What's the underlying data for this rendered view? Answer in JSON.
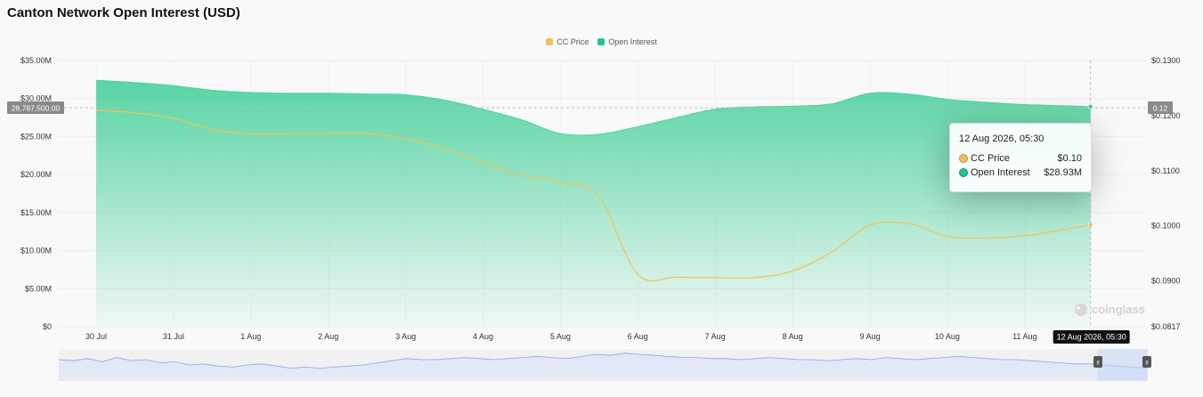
{
  "title": "Canton Network Open Interest (USD)",
  "colors": {
    "price": "#f0c25a",
    "oi": "#22c38e",
    "oi_fill_top": "#4fd39f",
    "navigator_line": "#8fa6e0",
    "navigator_fill": "#dfe6f8"
  },
  "legend": [
    {
      "label": "CC Price",
      "color": "#f0c25a"
    },
    {
      "label": "Open Interest",
      "color": "#22c38e"
    }
  ],
  "crosshair": {
    "left_label": "28,787,500.00",
    "right_label": "0.12",
    "x_label": "12 Aug 2026, 05:30"
  },
  "tooltip": {
    "title": "12 Aug 2026, 05:30",
    "rows": [
      {
        "label": "CC Price",
        "value": "$0.10",
        "color": "#f0c25a"
      },
      {
        "label": "Open Interest",
        "value": "$28.93M",
        "color": "#22c38e"
      }
    ]
  },
  "watermark": "coinglass",
  "navigator": {
    "handle_glyph": "II",
    "values": [
      1.0,
      0.9,
      1.1,
      0.8,
      1.2,
      0.9,
      1.0,
      0.7,
      0.8,
      0.5,
      0.6,
      0.4,
      0.3,
      0.5,
      0.6,
      0.4,
      0.2,
      0.3,
      0.2,
      0.3,
      0.4,
      0.5,
      0.7,
      0.9,
      1.1,
      1.0,
      1.0,
      1.1,
      1.2,
      1.1,
      1.0,
      1.1,
      1.2,
      1.3,
      1.2,
      1.1,
      1.3,
      1.5,
      1.4,
      1.6,
      1.5,
      1.4,
      1.3,
      1.2,
      1.2,
      1.1,
      1.1,
      1.0,
      1.1,
      1.2,
      1.1,
      1.0,
      1.0,
      0.9,
      1.0,
      1.1,
      1.0,
      1.2,
      1.1,
      1.0,
      1.1,
      1.2,
      1.3,
      1.2,
      1.1,
      1.0,
      1.0,
      0.9,
      0.8,
      0.7,
      0.6,
      0.6,
      0.5,
      0.4,
      0.3,
      0.2
    ]
  },
  "chart_data": {
    "type": "area",
    "x_ticks": [
      "30 Jul",
      "31 Jul",
      "1 Aug",
      "2 Aug",
      "3 Aug",
      "4 Aug",
      "5 Aug",
      "6 Aug",
      "7 Aug",
      "8 Aug",
      "9 Aug",
      "10 Aug",
      "11 Aug"
    ],
    "y_left": {
      "min": 0,
      "max": 35000000,
      "ticks": [
        "$0",
        "$5.00M",
        "$10.00M",
        "$15.00M",
        "$20.00M",
        "$25.00M",
        "$30.00M",
        "$35.00M"
      ]
    },
    "y_right": {
      "min": 0.0817,
      "max": 0.13,
      "ticks": [
        "$0.0817",
        "$0.0900",
        "$0.1000",
        "$0.1100",
        "$0.1200",
        "$0.1300"
      ]
    },
    "series": [
      {
        "name": "Open Interest",
        "axis": "left",
        "x": [
          0,
          0.5,
          1,
          1.5,
          2,
          2.5,
          3,
          3.5,
          4,
          4.5,
          5,
          5.5,
          6,
          6.5,
          7,
          7.5,
          8,
          8.5,
          9,
          9.5,
          10,
          10.5,
          11,
          11.5,
          12,
          12.5,
          12.85
        ],
        "values": [
          32400000,
          32100000,
          31700000,
          31100000,
          30800000,
          30700000,
          30700000,
          30600000,
          30500000,
          29800000,
          28600000,
          27200000,
          25400000,
          25300000,
          26300000,
          27500000,
          28600000,
          28900000,
          29000000,
          29300000,
          30700000,
          30600000,
          29900000,
          29500000,
          29200000,
          29050000,
          28930000
        ]
      },
      {
        "name": "CC Price",
        "axis": "right",
        "x": [
          0,
          0.5,
          1,
          1.5,
          2,
          2.5,
          3,
          3.5,
          4,
          4.5,
          5,
          5.5,
          6,
          6.5,
          7,
          7.5,
          8,
          8.5,
          9,
          9.5,
          10,
          10.5,
          11,
          11.5,
          12,
          12.5,
          12.85
        ],
        "values": [
          0.121,
          0.1205,
          0.1195,
          0.1175,
          0.1167,
          0.1167,
          0.1168,
          0.1168,
          0.1158,
          0.114,
          0.1115,
          0.1092,
          0.108,
          0.1052,
          0.0912,
          0.0907,
          0.0906,
          0.0906,
          0.0918,
          0.0952,
          0.1001,
          0.1004,
          0.0981,
          0.0978,
          0.0982,
          0.0993,
          0.1002
        ]
      }
    ]
  }
}
